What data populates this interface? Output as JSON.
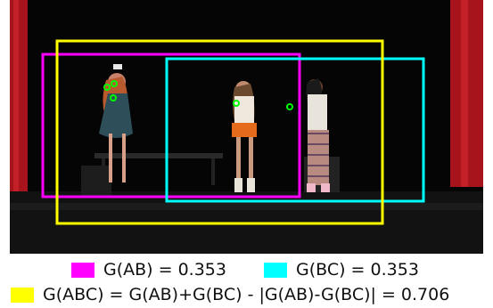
{
  "legend": {
    "ab": {
      "label": "G(AB) = 0.353",
      "color": "#ff00ff"
    },
    "bc": {
      "label": "G(BC) = 0.353",
      "color": "#00ffff"
    },
    "abc": {
      "label": "G(ABC) = G(AB)+G(BC) - |G(AB)-G(BC)| = 0.706",
      "color": "#ffff00"
    }
  },
  "keypoint_color": "#00ff00"
}
